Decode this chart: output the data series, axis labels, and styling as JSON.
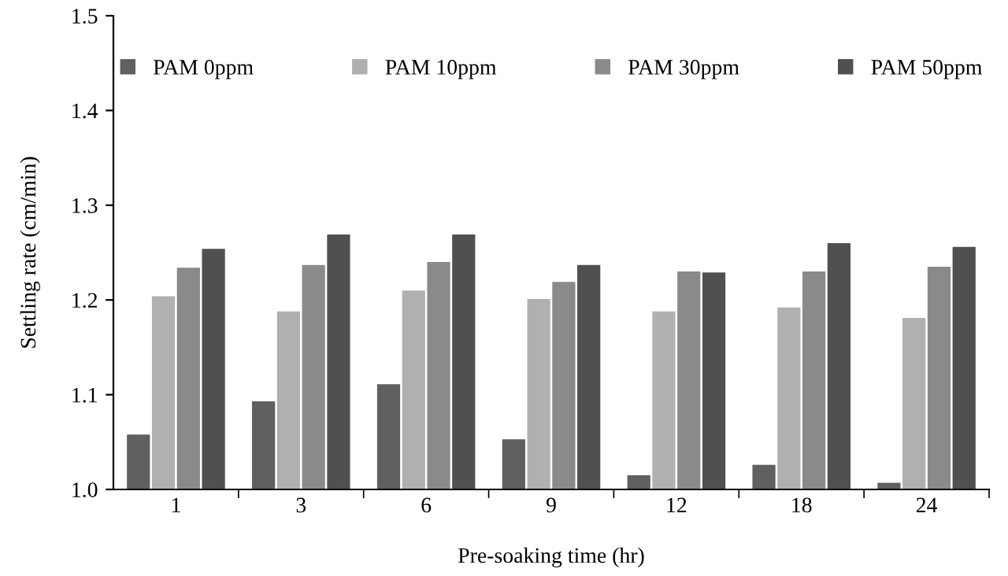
{
  "chart_data": {
    "type": "bar",
    "xlabel": "Pre-soaking time (hr)",
    "ylabel": "Settling rate (cm/min)",
    "categories": [
      "1",
      "3",
      "6",
      "9",
      "12",
      "18",
      "24"
    ],
    "series": [
      {
        "name": "PAM 0ppm",
        "color": "#606060",
        "values": [
          1.058,
          1.093,
          1.111,
          1.053,
          1.015,
          1.026,
          1.007
        ]
      },
      {
        "name": "PAM 10ppm",
        "color": "#b0b0b0",
        "values": [
          1.204,
          1.188,
          1.21,
          1.201,
          1.188,
          1.192,
          1.181
        ]
      },
      {
        "name": "PAM 30ppm",
        "color": "#8a8a8a",
        "values": [
          1.234,
          1.237,
          1.24,
          1.219,
          1.23,
          1.23,
          1.235
        ]
      },
      {
        "name": "PAM 50ppm",
        "color": "#505050",
        "values": [
          1.254,
          1.269,
          1.269,
          1.237,
          1.229,
          1.26,
          1.256
        ]
      }
    ],
    "ylim": [
      1.0,
      1.5
    ],
    "yticks": [
      {
        "value": 1,
        "label": "1.0"
      },
      1.1,
      1.2,
      1.3,
      1.4,
      {
        "value": 1.5,
        "label": "1.5"
      }
    ],
    "grid": false,
    "legend": "top"
  }
}
